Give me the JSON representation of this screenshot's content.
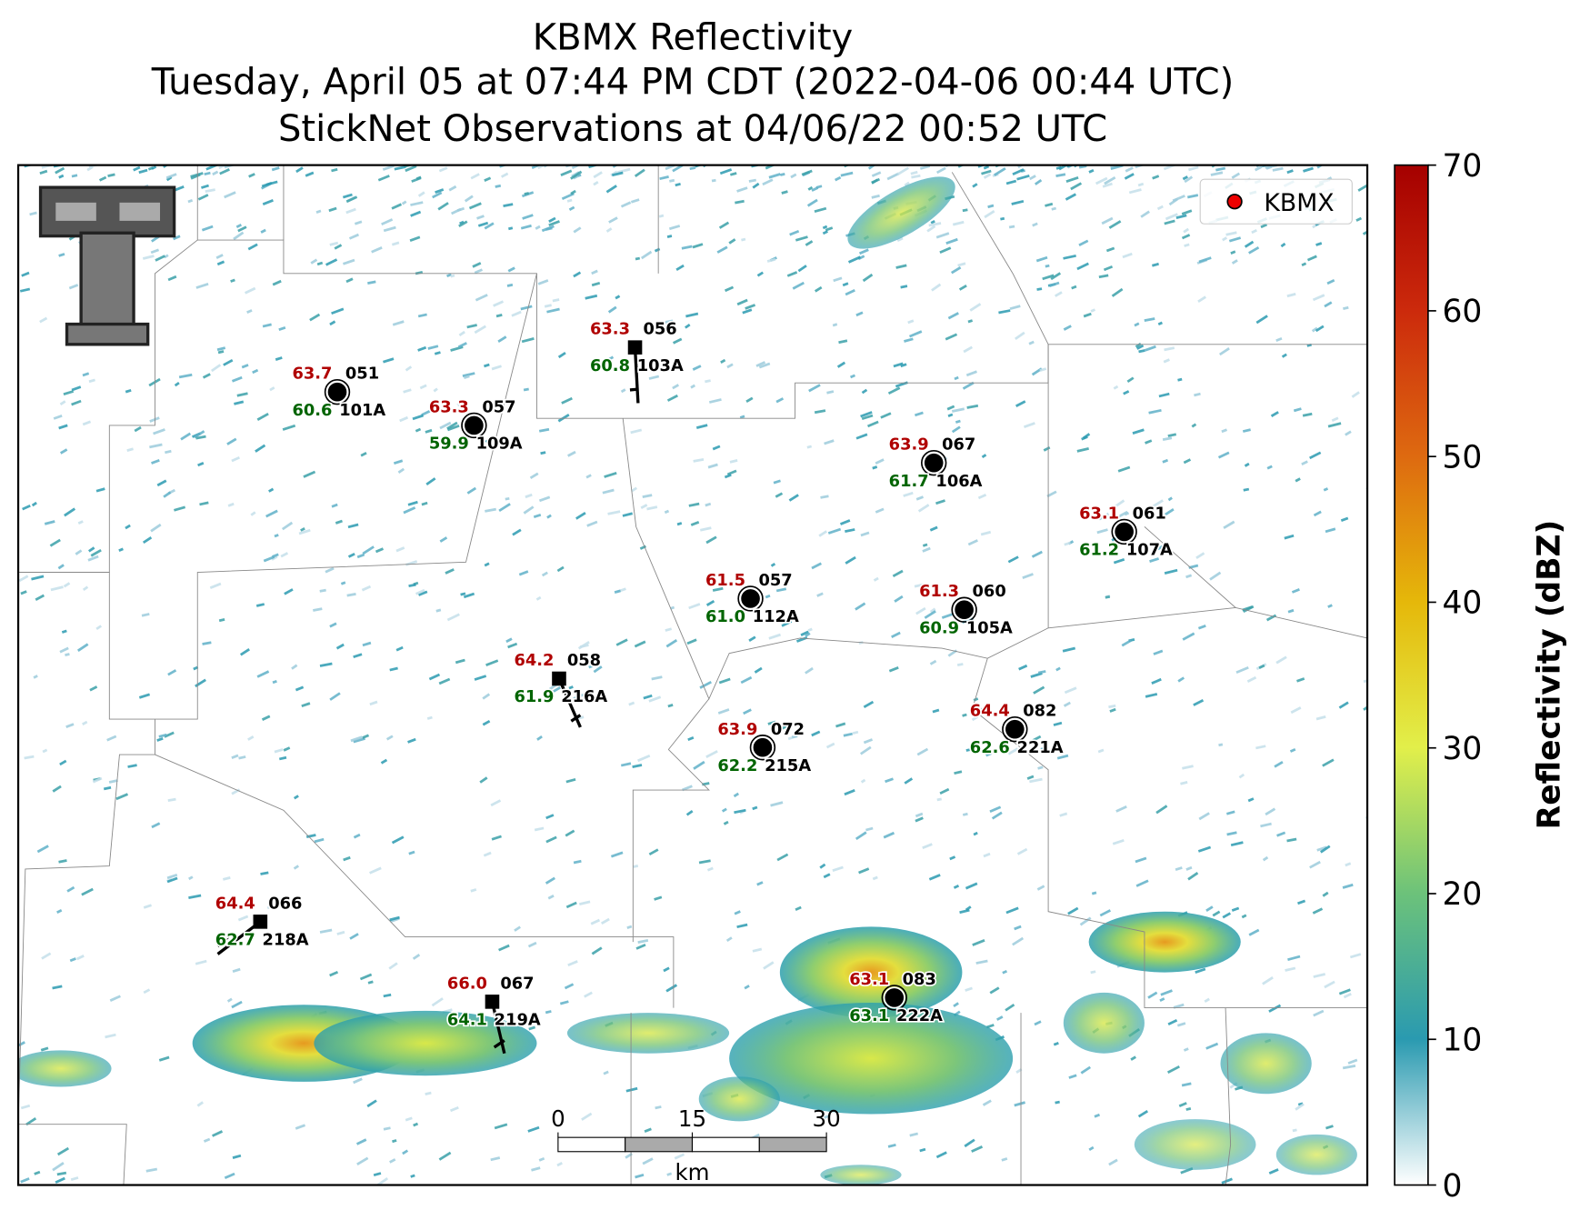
{
  "title": [
    "KBMX Reflectivity",
    "Tuesday, April 05 at 07:44 PM CDT (2022-04-06 00:44 UTC)",
    "StickNet Observations at 04/06/22 00:52 UTC"
  ],
  "legend": [
    "KBMX"
  ],
  "colorbar": {
    "label": "Reflectivity (dBZ)",
    "lim": [
      0,
      70
    ],
    "ticks": [
      0,
      10,
      20,
      30,
      40,
      50,
      60,
      70
    ]
  },
  "scale_bar": {
    "ticks": [
      0,
      15,
      30
    ],
    "unit": "km"
  },
  "stations": [
    {
      "id": "101A",
      "temperature": "63.7",
      "dewpoint": "60.6",
      "pressure": "051"
    },
    {
      "id": "109A",
      "temperature": "63.3",
      "dewpoint": "59.9",
      "pressure": "057"
    },
    {
      "id": "103A",
      "temperature": "63.3",
      "dewpoint": "60.8",
      "pressure": "056"
    },
    {
      "id": "106A",
      "temperature": "63.9",
      "dewpoint": "61.7",
      "pressure": "067"
    },
    {
      "id": "107A",
      "temperature": "63.1",
      "dewpoint": "61.2",
      "pressure": "061"
    },
    {
      "id": "112A",
      "temperature": "61.5",
      "dewpoint": "61.0",
      "pressure": "057"
    },
    {
      "id": "105A",
      "temperature": "61.3",
      "dewpoint": "60.9",
      "pressure": "060"
    },
    {
      "id": "216A",
      "temperature": "64.2",
      "dewpoint": "61.9",
      "pressure": "058"
    },
    {
      "id": "215A",
      "temperature": "63.9",
      "dewpoint": "62.2",
      "pressure": "072"
    },
    {
      "id": "221A",
      "temperature": "64.4",
      "dewpoint": "62.6",
      "pressure": "082"
    },
    {
      "id": "218A",
      "temperature": "64.4",
      "dewpoint": "62.7",
      "pressure": "066"
    },
    {
      "id": "219A",
      "temperature": "66.0",
      "dewpoint": "64.1",
      "pressure": "067"
    },
    {
      "id": "222A",
      "temperature": "63.1",
      "dewpoint": "63.1",
      "pressure": "083"
    }
  ]
}
